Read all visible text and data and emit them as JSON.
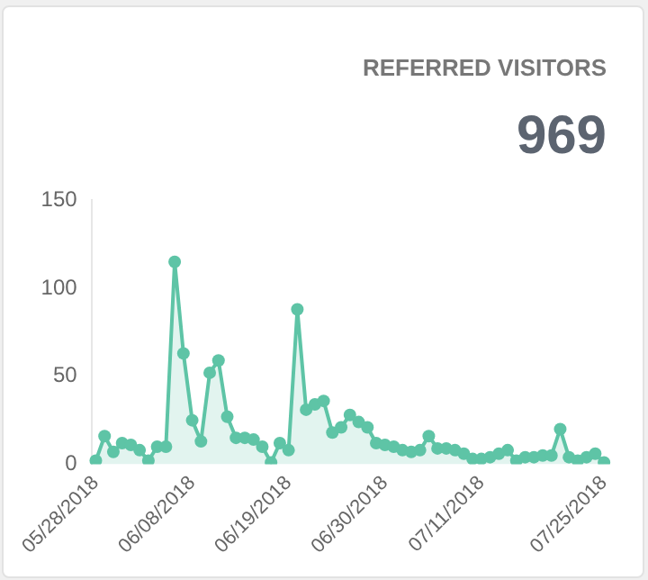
{
  "chart_data": {
    "type": "area",
    "title": "REFERRED VISITORS",
    "subtitle": "969",
    "categories": [
      "05/28/2018",
      null,
      null,
      null,
      null,
      null,
      null,
      null,
      null,
      null,
      null,
      "06/08/2018",
      null,
      null,
      null,
      null,
      null,
      null,
      null,
      null,
      null,
      null,
      "06/19/2018",
      null,
      null,
      null,
      null,
      null,
      null,
      null,
      null,
      null,
      null,
      "06/30/2018",
      null,
      null,
      null,
      null,
      null,
      null,
      null,
      null,
      null,
      null,
      "07/11/2018",
      null,
      null,
      null,
      null,
      null,
      null,
      null,
      null,
      null,
      null,
      null,
      null,
      null,
      "07/25/2018"
    ],
    "series": [
      {
        "color": "#5ec4a6",
        "values": [
          2,
          16,
          7,
          12,
          11,
          8,
          2,
          10,
          10,
          115,
          63,
          25,
          13,
          52,
          59,
          27,
          15,
          15,
          14,
          10,
          1,
          12,
          8,
          88,
          31,
          34,
          36,
          18,
          21,
          28,
          24,
          21,
          12,
          11,
          10,
          8,
          7,
          8,
          16,
          9,
          9,
          8,
          6,
          3,
          3,
          4,
          6,
          8,
          2,
          4,
          4,
          5,
          5,
          20,
          4,
          2,
          4,
          6,
          1
        ]
      }
    ],
    "ylim": [
      0,
      150
    ],
    "yticks": [
      0,
      50,
      100,
      150
    ],
    "grid": false,
    "legend": false,
    "marker": "circle"
  }
}
